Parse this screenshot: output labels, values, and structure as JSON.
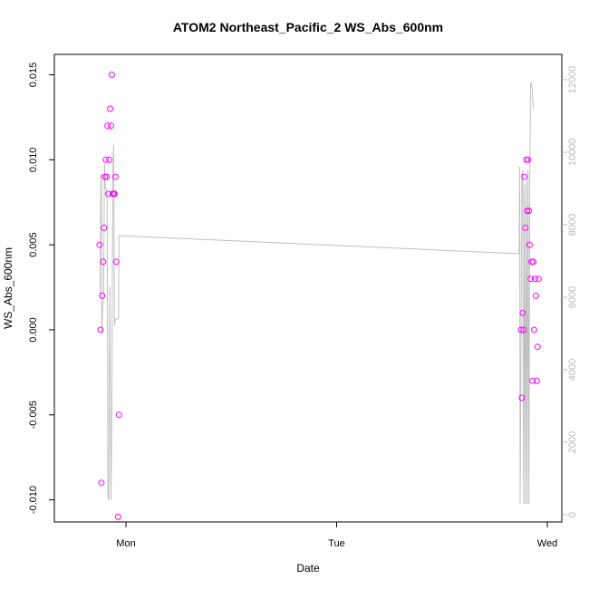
{
  "chart_data": {
    "type": "scatter",
    "title": "ATOM2 Northeast_Pacific_2 WS_Abs_600nm",
    "xlabel": "Date",
    "ylabel": "WS_Abs_600nm",
    "x_ticks": [
      "Mon",
      "Tue",
      "Wed"
    ],
    "ylim": [
      -0.0113,
      0.0162
    ],
    "y_ticks": [
      -0.01,
      -0.005,
      0.0,
      0.005,
      0.01,
      0.015
    ],
    "y_tick_labels": [
      "-0.010",
      "-0.005",
      "0.000",
      "0.005",
      "0.010",
      "0.015"
    ],
    "y2lim": [
      -200,
      12700
    ],
    "y2_ticks": [
      0,
      2000,
      4000,
      6000,
      8000,
      10000,
      12000
    ],
    "y2_tick_labels": [
      "0",
      "2000",
      "4000",
      "6000",
      "8000",
      "10000",
      "12000"
    ],
    "grid": false,
    "series": [
      {
        "color": "#ff00ff",
        "marker": "open-circle",
        "axis": "left",
        "points": [
          [
            "Sun 21:00",
            0.005
          ],
          [
            "Sun 21:06",
            0.0
          ],
          [
            "Sun 21:12",
            -0.009
          ],
          [
            "Sun 21:18",
            0.002
          ],
          [
            "Sun 21:24",
            0.004
          ],
          [
            "Sun 21:30",
            0.006
          ],
          [
            "Sun 21:36",
            0.009
          ],
          [
            "Sun 21:42",
            0.01
          ],
          [
            "Sun 21:48",
            0.009
          ],
          [
            "Sun 21:54",
            0.012
          ],
          [
            "Sun 22:00",
            0.008
          ],
          [
            "Sun 22:06",
            0.01
          ],
          [
            "Sun 22:12",
            0.013
          ],
          [
            "Sun 22:18",
            0.012
          ],
          [
            "Sun 22:24",
            0.015
          ],
          [
            "Sun 22:30",
            0.008
          ],
          [
            "Sun 22:36",
            0.008
          ],
          [
            "Sun 22:42",
            0.008
          ],
          [
            "Sun 22:48",
            0.009
          ],
          [
            "Sun 22:54",
            0.004
          ],
          [
            "Sun 23:06",
            -0.011
          ],
          [
            "Sun 23:12",
            -0.005
          ],
          [
            "Tue 21:00",
            0.0
          ],
          [
            "Tue 21:06",
            -0.004
          ],
          [
            "Tue 21:12",
            0.001
          ],
          [
            "Tue 21:18",
            0.0
          ],
          [
            "Tue 21:24",
            0.009
          ],
          [
            "Tue 21:30",
            0.006
          ],
          [
            "Tue 21:36",
            0.01
          ],
          [
            "Tue 21:42",
            0.007
          ],
          [
            "Tue 21:48",
            0.01
          ],
          [
            "Tue 21:54",
            0.007
          ],
          [
            "Tue 22:00",
            0.005
          ],
          [
            "Tue 22:06",
            0.003
          ],
          [
            "Tue 22:12",
            0.004
          ],
          [
            "Tue 22:18",
            -0.003
          ],
          [
            "Tue 22:24",
            0.004
          ],
          [
            "Tue 22:30",
            0.0
          ],
          [
            "Tue 22:36",
            0.003
          ],
          [
            "Tue 22:42",
            0.002
          ],
          [
            "Tue 22:48",
            -0.003
          ],
          [
            "Tue 22:54",
            -0.001
          ],
          [
            "Tue 23:00",
            0.003
          ]
        ]
      },
      {
        "color": "#c0c0c0",
        "marker": "line",
        "axis": "right",
        "points": [
          [
            "Sun 21:03",
            6000
          ],
          [
            "Sun 21:09",
            9400
          ],
          [
            "Sun 21:12",
            9400
          ],
          [
            "Sun 21:15",
            5000
          ],
          [
            "Sun 21:21",
            5800
          ],
          [
            "Sun 21:27",
            6000
          ],
          [
            "Sun 21:33",
            9700
          ],
          [
            "Sun 21:39",
            9000
          ],
          [
            "Sun 21:45",
            9000
          ],
          [
            "Sun 21:51",
            8700
          ],
          [
            "Sun 21:57",
            500
          ],
          [
            "Sun 22:03",
            400
          ],
          [
            "Sun 22:09",
            6300
          ],
          [
            "Sun 22:15",
            2500
          ],
          [
            "Sun 22:18",
            400
          ],
          [
            "Sun 22:24",
            3000
          ],
          [
            "Sun 22:30",
            9300
          ],
          [
            "Sun 22:36",
            10200
          ],
          [
            "Sun 22:42",
            5200
          ],
          [
            "Sun 22:48",
            5400
          ],
          [
            "Sun 23:09",
            5400
          ],
          [
            "Sun 23:12",
            7700
          ],
          [
            "Tue 20:48",
            7200
          ],
          [
            "Tue 20:51",
            9600
          ],
          [
            "Tue 20:54",
            300
          ],
          [
            "Tue 21:00",
            4200
          ],
          [
            "Tue 21:06",
            9400
          ],
          [
            "Tue 21:12",
            9500
          ],
          [
            "Tue 21:18",
            300
          ],
          [
            "Tue 21:24",
            9100
          ],
          [
            "Tue 21:30",
            300
          ],
          [
            "Tue 21:36",
            9200
          ],
          [
            "Tue 21:42",
            300
          ],
          [
            "Tue 21:48",
            9500
          ],
          [
            "Tue 21:54",
            300
          ],
          [
            "Tue 22:00",
            9200
          ],
          [
            "Tue 22:06",
            11900
          ],
          [
            "Tue 22:12",
            11900
          ],
          [
            "Tue 22:18",
            11700
          ],
          [
            "Tue 22:24",
            11200
          ]
        ]
      }
    ]
  }
}
